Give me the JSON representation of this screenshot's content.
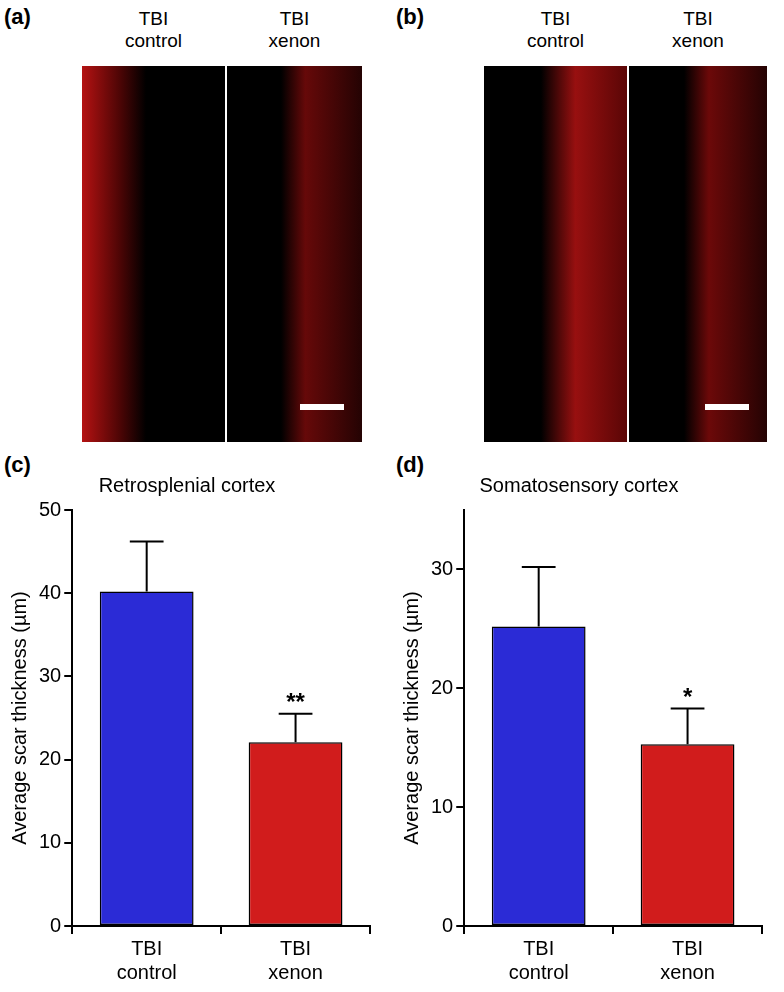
{
  "image_panels": [
    {
      "label": "(a)",
      "columns": [
        "TBI control",
        "TBI xenon"
      ]
    },
    {
      "label": "(b)",
      "columns": [
        "TBI control",
        "TBI xenon"
      ]
    }
  ],
  "chart_data": [
    {
      "panel": "(c)",
      "type": "bar",
      "title": "Retrosplenial cortex",
      "y_label": "Average scar thickness (µm)",
      "categories": [
        "TBI control",
        "TBI xenon"
      ],
      "values": [
        40.2,
        22.1
      ],
      "errors": [
        6.0,
        3.4
      ],
      "colors": [
        "#2b2bd6",
        "#d11c1c"
      ],
      "ylim": [
        0,
        50
      ],
      "yticks": [
        0,
        10,
        20,
        30,
        40,
        50
      ],
      "grid": false,
      "annotations": [
        {
          "category": "TBI xenon",
          "text": "**"
        }
      ]
    },
    {
      "panel": "(d)",
      "type": "bar",
      "title": "Somatosensory cortex",
      "y_label": "Average scar thickness (µm)",
      "categories": [
        "TBI control",
        "TBI xenon"
      ],
      "values": [
        25.2,
        15.3
      ],
      "errors": [
        5.0,
        3.0
      ],
      "colors": [
        "#2b2bd6",
        "#d11c1c"
      ],
      "ylim": [
        0,
        35
      ],
      "yticks": [
        0,
        10,
        20,
        30
      ],
      "grid": false,
      "annotations": [
        {
          "category": "TBI xenon",
          "text": "*"
        }
      ]
    }
  ]
}
